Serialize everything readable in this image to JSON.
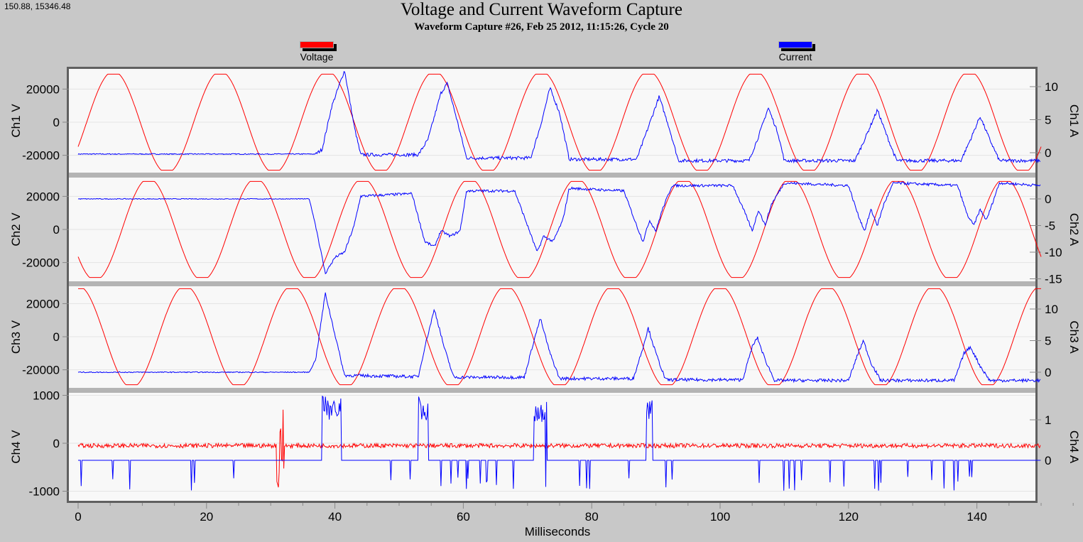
{
  "cursor_readout": "150.88, 15346.48",
  "chart_data": {
    "type": "line",
    "title": "Voltage and Current Waveform Capture",
    "subtitle": "Waveform Capture #26, Feb 25 2012, 11:15:26,  Cycle 20",
    "xlabel": "Milliseconds",
    "xlim": [
      0,
      157
    ],
    "xticks": [
      0,
      20,
      40,
      60,
      80,
      100,
      120,
      140
    ],
    "legend": {
      "placement": "top",
      "entries": [
        {
          "name": "Voltage",
          "color": "#ff0000"
        },
        {
          "name": "Current",
          "color": "#0000ff"
        }
      ]
    },
    "grid": true,
    "panels": [
      {
        "ylabel_left": "Ch1 V",
        "ylabel_right": "Ch1 A",
        "yticks_left": [
          20000,
          0,
          -20000
        ],
        "yticks_right": [
          10,
          5,
          0
        ],
        "voltage": {
          "amplitude": 29000,
          "frequency_hz": 60,
          "first_peak_ms": 5.5
        },
        "current": [
          [
            0,
            -0.2
          ],
          [
            37,
            -0.2
          ],
          [
            38,
            0.5
          ],
          [
            39.5,
            7
          ],
          [
            41.5,
            12.5
          ],
          [
            43,
            4
          ],
          [
            44,
            -0.3
          ],
          [
            53,
            -0.3
          ],
          [
            54.5,
            2
          ],
          [
            56.5,
            9
          ],
          [
            57.5,
            10.5
          ],
          [
            59,
            5
          ],
          [
            60.5,
            -0.8
          ],
          [
            70.5,
            -0.8
          ],
          [
            72,
            4
          ],
          [
            73.5,
            9.8
          ],
          [
            75,
            6
          ],
          [
            76.5,
            -1
          ],
          [
            87,
            -1
          ],
          [
            88.5,
            3
          ],
          [
            90.5,
            8.5
          ],
          [
            92,
            4
          ],
          [
            93.5,
            -1.2
          ],
          [
            104.5,
            -1.2
          ],
          [
            106,
            2.5
          ],
          [
            107.5,
            6.8
          ],
          [
            109,
            3
          ],
          [
            110,
            -1.2
          ],
          [
            121,
            -1.2
          ],
          [
            122.5,
            2
          ],
          [
            124.5,
            6.5
          ],
          [
            126,
            2.5
          ],
          [
            127.5,
            -1.2
          ],
          [
            137.5,
            -1.2
          ],
          [
            139,
            2
          ],
          [
            140.5,
            5.5
          ],
          [
            142,
            2
          ],
          [
            143.5,
            -1.2
          ],
          [
            150,
            -1.2
          ]
        ]
      },
      {
        "ylabel_left": "Ch2 V",
        "ylabel_right": "Ch2 A",
        "yticks_left": [
          20000,
          0,
          -20000
        ],
        "yticks_right": [
          0,
          -5,
          -10,
          -15
        ],
        "voltage": {
          "amplitude": 29000,
          "frequency_hz": 60,
          "first_peak_ms": 11
        },
        "current": [
          [
            0,
            0
          ],
          [
            36,
            0
          ],
          [
            37,
            -5
          ],
          [
            38.5,
            -14
          ],
          [
            40,
            -11
          ],
          [
            41.5,
            -10
          ],
          [
            43,
            -5
          ],
          [
            44,
            0.5
          ],
          [
            52,
            1
          ],
          [
            54,
            -8
          ],
          [
            55.5,
            -9
          ],
          [
            56.5,
            -6
          ],
          [
            58,
            -7
          ],
          [
            59.5,
            -6
          ],
          [
            60.5,
            1.5
          ],
          [
            68,
            1.5
          ],
          [
            70,
            -5
          ],
          [
            71.5,
            -10
          ],
          [
            72.5,
            -7
          ],
          [
            74,
            -8
          ],
          [
            75.5,
            -4
          ],
          [
            76.5,
            2
          ],
          [
            85,
            1.5
          ],
          [
            87,
            -5
          ],
          [
            88,
            -8
          ],
          [
            89,
            -4
          ],
          [
            90,
            -6
          ],
          [
            91,
            -2
          ],
          [
            92.5,
            2.5
          ],
          [
            102,
            2.5
          ],
          [
            104,
            -3
          ],
          [
            105,
            -6
          ],
          [
            106,
            -2
          ],
          [
            107,
            -5
          ],
          [
            108,
            -1
          ],
          [
            110,
            3
          ],
          [
            120,
            2.5
          ],
          [
            121.5,
            -3
          ],
          [
            122.5,
            -6
          ],
          [
            123.5,
            -2
          ],
          [
            124.5,
            -5
          ],
          [
            125.5,
            -1
          ],
          [
            127,
            3
          ],
          [
            137,
            2.5
          ],
          [
            138.5,
            -3
          ],
          [
            139.5,
            -5
          ],
          [
            140.5,
            -2
          ],
          [
            141.5,
            -4
          ],
          [
            143.5,
            3
          ],
          [
            150,
            2.5
          ]
        ]
      },
      {
        "ylabel_left": "Ch3 V",
        "ylabel_right": "Ch3 A",
        "yticks_left": [
          20000,
          0,
          -20000
        ],
        "yticks_right": [
          10,
          5,
          0
        ],
        "voltage": {
          "amplitude": 29000,
          "frequency_hz": 60,
          "first_peak_ms": 0
        },
        "current": [
          [
            0,
            0
          ],
          [
            36,
            0
          ],
          [
            37,
            2
          ],
          [
            38.5,
            12.5
          ],
          [
            40,
            6
          ],
          [
            41.5,
            -0.5
          ],
          [
            53,
            -0.7
          ],
          [
            54,
            4
          ],
          [
            55.5,
            10
          ],
          [
            57,
            4
          ],
          [
            58.5,
            -0.8
          ],
          [
            69.5,
            -0.8
          ],
          [
            71,
            5
          ],
          [
            72,
            8.5
          ],
          [
            73.5,
            3
          ],
          [
            75,
            -1
          ],
          [
            86.5,
            -1
          ],
          [
            88,
            4
          ],
          [
            88.8,
            7
          ],
          [
            90,
            3
          ],
          [
            91.5,
            -1.2
          ],
          [
            103.5,
            -1.2
          ],
          [
            105,
            4
          ],
          [
            105.8,
            5.5
          ],
          [
            107,
            2
          ],
          [
            108.5,
            -1.3
          ],
          [
            120,
            -1.3
          ],
          [
            121.5,
            3
          ],
          [
            122.3,
            5
          ],
          [
            123.5,
            1.5
          ],
          [
            125,
            -1.3
          ],
          [
            136.5,
            -1.3
          ],
          [
            138,
            3
          ],
          [
            139,
            4
          ],
          [
            140.5,
            1
          ],
          [
            142,
            -1.3
          ],
          [
            150,
            -1.3
          ]
        ]
      },
      {
        "ylabel_left": "Ch4 V",
        "ylabel_right": "Ch4 A",
        "yticks_left": [
          1000,
          0,
          -1000
        ],
        "yticks_right": [
          1,
          0
        ],
        "voltage_baseline": -50,
        "current_baseline": 0,
        "current_pulses": [
          [
            38,
            41,
            1.6
          ],
          [
            53,
            54.5,
            1.6
          ],
          [
            71,
            73,
            1.5
          ],
          [
            88.5,
            89.5,
            1.6
          ]
        ]
      }
    ]
  }
}
